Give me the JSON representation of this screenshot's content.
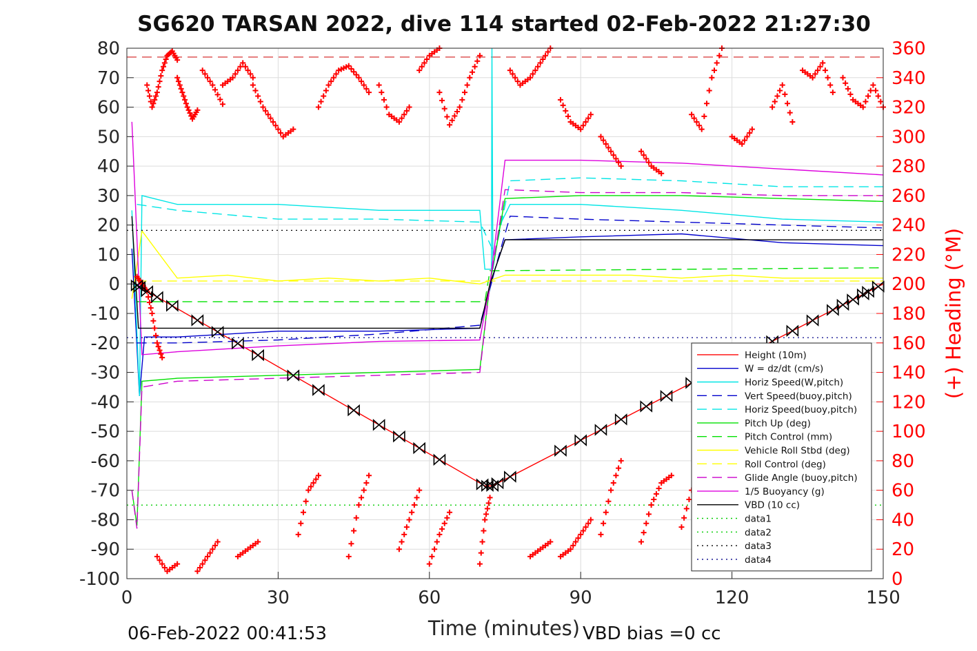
{
  "chart_data": {
    "type": "line",
    "title": "SG620 TARSAN 2022, dive 114 started 02-Feb-2022 21:27:30",
    "xlabel": "Time (minutes)",
    "ylabel_left": "",
    "ylabel_right": "(+) Heading (°M)",
    "xlim": [
      0,
      150
    ],
    "ylim_left": [
      -100,
      80
    ],
    "ylim_right": [
      0,
      360
    ],
    "x_ticks": [
      "0",
      "30",
      "60",
      "90",
      "120",
      "150"
    ],
    "y_ticks_left": [
      "80",
      "70",
      "60",
      "50",
      "40",
      "30",
      "20",
      "10",
      "0",
      "-10",
      "-20",
      "-30",
      "-40",
      "-50",
      "-60",
      "-70",
      "-80",
      "-90",
      "-100"
    ],
    "y_ticks_right": [
      "360",
      "340",
      "320",
      "300",
      "280",
      "260",
      "240",
      "220",
      "200",
      "180",
      "160",
      "140",
      "120",
      "100",
      "80",
      "60",
      "40",
      "20",
      "0"
    ],
    "grid": true,
    "legend_position": "bottom-right",
    "footer_left": "06-Feb-2022 00:41:53",
    "footer_right": "VBD bias =0 cc",
    "series": [
      {
        "name": "Height (10m)",
        "color": "#ff0000",
        "style": "solid",
        "x": [
          1.5,
          71,
          72.5,
          150
        ],
        "y": [
          0,
          -68.5,
          -68.5,
          0
        ]
      },
      {
        "name": "W = dz/dt (cm/s)",
        "color": "#0000cc",
        "style": "solid",
        "x": [
          1,
          2.5,
          3.5,
          10,
          30,
          50,
          70,
          71.5,
          73,
          75,
          90,
          110,
          130,
          150
        ],
        "y": [
          12,
          -38,
          -18,
          -18,
          -16,
          -16,
          -15,
          -5,
          5,
          15,
          16,
          17,
          14,
          13
        ]
      },
      {
        "name": "Horiz Speed(W,pitch)",
        "color": "#00e5e5",
        "style": "solid",
        "x": [
          1,
          2.5,
          3,
          10,
          30,
          50,
          70,
          71,
          72.3,
          72.4,
          72.6,
          74,
          76,
          90,
          110,
          130,
          150
        ],
        "y": [
          25,
          -38,
          30,
          27,
          27,
          25,
          25,
          5,
          5,
          80,
          5,
          20,
          27,
          27,
          25,
          22,
          21
        ]
      },
      {
        "name": "Vert Speed(buoy,pitch)",
        "color": "#0000cc",
        "style": "dash",
        "x": [
          2,
          10,
          30,
          50,
          70,
          73,
          76,
          90,
          110,
          130,
          150
        ],
        "y": [
          -20,
          -20,
          -19,
          -17,
          -14,
          5,
          23,
          22,
          21,
          20,
          19
        ]
      },
      {
        "name": "Horiz Speed(buoy,pitch)",
        "color": "#00e5e5",
        "style": "dash",
        "x": [
          2,
          10,
          30,
          50,
          70,
          73,
          76,
          90,
          110,
          130,
          150
        ],
        "y": [
          27,
          25,
          22,
          22,
          21,
          10,
          35,
          36,
          35,
          33,
          33
        ]
      },
      {
        "name": "Pitch Up (deg)",
        "color": "#00e000",
        "style": "solid",
        "x": [
          1,
          2,
          3,
          10,
          30,
          50,
          70,
          72,
          75,
          90,
          110,
          130,
          150
        ],
        "y": [
          -70,
          -82,
          -33,
          -32,
          -31,
          -30,
          -29,
          0,
          29,
          30,
          30,
          29,
          28
        ]
      },
      {
        "name": "Pitch Control (mm)",
        "color": "#00e000",
        "style": "dash",
        "x": [
          2,
          71,
          72,
          150
        ],
        "y": [
          -6,
          -6,
          4.5,
          5.5
        ]
      },
      {
        "name": "Vehicle Roll Stbd (deg)",
        "color": "#ffff00",
        "style": "solid",
        "x": [
          1,
          3,
          10,
          20,
          30,
          40,
          50,
          60,
          70,
          75,
          90,
          100,
          110,
          120,
          130,
          140,
          150
        ],
        "y": [
          -5,
          18,
          2,
          3,
          1,
          2,
          1,
          2,
          0,
          3,
          3,
          3,
          2,
          3,
          2,
          2,
          2
        ]
      },
      {
        "name": "Roll Control (deg)",
        "color": "#ffff00",
        "style": "dash",
        "x": [
          2,
          150
        ],
        "y": [
          1,
          1
        ]
      },
      {
        "name": "Glide Angle (buoy,pitch)",
        "color": "#cc00cc",
        "style": "dash",
        "x": [
          1,
          2,
          3,
          10,
          30,
          50,
          70,
          72,
          75,
          90,
          110,
          130,
          150
        ],
        "y": [
          -70,
          -83,
          -35,
          -33,
          -32,
          -31,
          -30,
          0,
          32,
          31,
          31,
          30,
          30
        ]
      },
      {
        "name": "1/5 Buoyancy (g)",
        "color": "#dd00dd",
        "style": "solid",
        "x": [
          1,
          3,
          10,
          30,
          50,
          70,
          72,
          75,
          90,
          110,
          130,
          150
        ],
        "y": [
          55,
          -24,
          -23,
          -21,
          -19.5,
          -19,
          0,
          42,
          42,
          41,
          39,
          37
        ]
      },
      {
        "name": "VBD (10 cc)",
        "color": "#000000",
        "style": "solid",
        "x": [
          1,
          2.3,
          10,
          30,
          50,
          70,
          72,
          75,
          90,
          110,
          130,
          150
        ],
        "y": [
          23,
          -15,
          -15,
          -15,
          -15,
          -15,
          0,
          15,
          15,
          15,
          15,
          15
        ]
      },
      {
        "name": "data1",
        "color": "#00cc00",
        "style": "dot",
        "x": [
          0,
          150
        ],
        "y": [
          -75,
          -75
        ]
      },
      {
        "name": "data2",
        "color": "#00cc00",
        "style": "dot",
        "x": [
          0,
          150
        ],
        "y": [
          -75,
          -75
        ]
      },
      {
        "name": "data3",
        "color": "#000000",
        "style": "dot",
        "x": [
          0,
          150
        ],
        "y": [
          18.2,
          18.2
        ]
      },
      {
        "name": "data4",
        "color": "#000088",
        "style": "dot",
        "x": [
          0,
          150
        ],
        "y": [
          -18.2,
          -18.2
        ]
      }
    ],
    "reference_lines": [
      {
        "axis": "right",
        "y": 354,
        "color": "#cc0000",
        "style": "dash"
      }
    ],
    "vbd_markers": {
      "symbol": "bowtie-triangle",
      "color": "#000000",
      "x": [
        2,
        2.5,
        4,
        6,
        9,
        14,
        18,
        22,
        26,
        33,
        38,
        45,
        50,
        54,
        58,
        62,
        70.5,
        71.5,
        72.5,
        73.5,
        76,
        86,
        90,
        94,
        98,
        103,
        107,
        112,
        117,
        123,
        128,
        132,
        136,
        140,
        142,
        144,
        146,
        147,
        149
      ]
    },
    "heading_scatter": {
      "axis": "right",
      "marker": "+",
      "color": "#ff0000",
      "segments": [
        {
          "x": [
            2,
            3,
            4,
            5,
            6,
            7
          ],
          "y": [
            205,
            200,
            195,
            180,
            160,
            150
          ]
        },
        {
          "x": [
            4,
            5,
            6,
            7,
            8,
            9,
            10
          ],
          "y": [
            335,
            320,
            330,
            345,
            355,
            358,
            352
          ]
        },
        {
          "x": [
            10,
            11,
            12,
            13,
            14
          ],
          "y": [
            340,
            330,
            320,
            312,
            318
          ]
        },
        {
          "x": [
            15,
            17,
            19
          ],
          "y": [
            345,
            335,
            322
          ]
        },
        {
          "x": [
            19,
            21,
            23,
            25
          ],
          "y": [
            335,
            340,
            350,
            340
          ]
        },
        {
          "x": [
            25,
            27,
            29,
            31,
            33
          ],
          "y": [
            335,
            320,
            310,
            300,
            305
          ]
        },
        {
          "x": [
            38,
            40,
            42,
            44,
            46,
            48
          ],
          "y": [
            320,
            335,
            345,
            348,
            340,
            330
          ]
        },
        {
          "x": [
            50,
            52,
            54,
            56
          ],
          "y": [
            335,
            315,
            310,
            320
          ]
        },
        {
          "x": [
            58,
            60,
            62
          ],
          "y": [
            345,
            355,
            360
          ]
        },
        {
          "x": [
            62,
            64,
            66,
            68,
            70
          ],
          "y": [
            330,
            308,
            320,
            340,
            355
          ]
        },
        {
          "x": [
            76,
            78,
            80,
            82,
            84
          ],
          "y": [
            345,
            335,
            340,
            350,
            360
          ]
        },
        {
          "x": [
            86,
            88,
            90,
            92
          ],
          "y": [
            325,
            310,
            305,
            315
          ]
        },
        {
          "x": [
            94,
            96,
            98
          ],
          "y": [
            300,
            290,
            280
          ]
        },
        {
          "x": [
            102,
            104,
            106
          ],
          "y": [
            290,
            280,
            275
          ]
        },
        {
          "x": [
            112,
            114,
            116,
            118
          ],
          "y": [
            315,
            305,
            340,
            360
          ]
        },
        {
          "x": [
            120,
            122,
            124
          ],
          "y": [
            300,
            295,
            305
          ]
        },
        {
          "x": [
            128,
            130,
            132
          ],
          "y": [
            320,
            335,
            310
          ]
        },
        {
          "x": [
            134,
            136,
            138,
            140
          ],
          "y": [
            345,
            340,
            350,
            330
          ]
        },
        {
          "x": [
            142,
            144,
            146,
            148,
            150
          ],
          "y": [
            340,
            325,
            320,
            335,
            320
          ]
        },
        {
          "x": [
            14,
            16,
            18
          ],
          "y": [
            5,
            15,
            25
          ]
        },
        {
          "x": [
            22,
            24,
            26
          ],
          "y": [
            15,
            20,
            25
          ]
        },
        {
          "x": [
            34,
            36,
            38
          ],
          "y": [
            30,
            60,
            70
          ]
        },
        {
          "x": [
            44,
            46,
            48
          ],
          "y": [
            15,
            50,
            70
          ]
        },
        {
          "x": [
            54,
            56,
            58
          ],
          "y": [
            20,
            40,
            60
          ]
        },
        {
          "x": [
            60,
            62,
            64
          ],
          "y": [
            10,
            30,
            45
          ]
        },
        {
          "x": [
            70,
            71,
            72
          ],
          "y": [
            10,
            40,
            55
          ]
        },
        {
          "x": [
            80,
            82,
            84
          ],
          "y": [
            15,
            20,
            25
          ]
        },
        {
          "x": [
            86,
            88,
            90,
            92
          ],
          "y": [
            15,
            20,
            30,
            40
          ]
        },
        {
          "x": [
            94,
            96,
            98
          ],
          "y": [
            30,
            60,
            80
          ]
        },
        {
          "x": [
            102,
            104,
            106,
            108
          ],
          "y": [
            25,
            50,
            65,
            70
          ]
        },
        {
          "x": [
            110,
            112
          ],
          "y": [
            35,
            60
          ]
        },
        {
          "x": [
            114,
            116,
            118
          ],
          "y": [
            40,
            60,
            80
          ]
        },
        {
          "x": [
            6,
            8,
            10
          ],
          "y": [
            15,
            5,
            10
          ]
        }
      ]
    }
  }
}
